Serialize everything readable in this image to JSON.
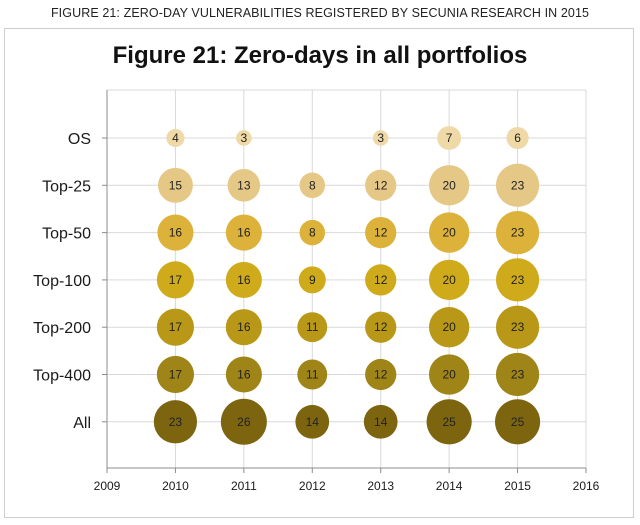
{
  "caption": "FIGURE 21: ZERO-DAY VULNERABILITIES REGISTERED BY SECUNIA RESEARCH IN 2015",
  "chart_data": {
    "type": "scatter",
    "title": "Figure 21: Zero-days in all portfolios",
    "x_ticks": [
      "2009",
      "2010",
      "2011",
      "2012",
      "2013",
      "2014",
      "2015",
      "2016"
    ],
    "xlim": [
      2009,
      2016
    ],
    "categories": [
      "OS",
      "Top-25",
      "Top-50",
      "Top-100",
      "Top-200",
      "Top-400",
      "All"
    ],
    "grid": true,
    "series": [
      {
        "color": "#efd9a6",
        "points": [
          {
            "x": 2010,
            "y": 4
          },
          {
            "x": 2011,
            "y": 3
          },
          {
            "x": 2013,
            "y": 3
          },
          {
            "x": 2014,
            "y": 7
          },
          {
            "x": 2015,
            "y": 6
          }
        ]
      },
      {
        "color": "#e6c886",
        "points": [
          {
            "x": 2010,
            "y": 15
          },
          {
            "x": 2011,
            "y": 13
          },
          {
            "x": 2012,
            "y": 8
          },
          {
            "x": 2013,
            "y": 12
          },
          {
            "x": 2014,
            "y": 20
          },
          {
            "x": 2015,
            "y": 23
          }
        ]
      },
      {
        "color": "#dcb23a",
        "points": [
          {
            "x": 2010,
            "y": 16
          },
          {
            "x": 2011,
            "y": 16
          },
          {
            "x": 2012,
            "y": 8
          },
          {
            "x": 2013,
            "y": 12
          },
          {
            "x": 2014,
            "y": 20
          },
          {
            "x": 2015,
            "y": 23
          }
        ]
      },
      {
        "color": "#cfab1c",
        "points": [
          {
            "x": 2010,
            "y": 17
          },
          {
            "x": 2011,
            "y": 16
          },
          {
            "x": 2012,
            "y": 9
          },
          {
            "x": 2013,
            "y": 12
          },
          {
            "x": 2014,
            "y": 20
          },
          {
            "x": 2015,
            "y": 23
          }
        ]
      },
      {
        "color": "#b99818",
        "points": [
          {
            "x": 2010,
            "y": 17
          },
          {
            "x": 2011,
            "y": 16
          },
          {
            "x": 2012,
            "y": 11
          },
          {
            "x": 2013,
            "y": 12
          },
          {
            "x": 2014,
            "y": 20
          },
          {
            "x": 2015,
            "y": 23
          }
        ]
      },
      {
        "color": "#9f8417",
        "points": [
          {
            "x": 2010,
            "y": 17
          },
          {
            "x": 2011,
            "y": 16
          },
          {
            "x": 2012,
            "y": 11
          },
          {
            "x": 2013,
            "y": 12
          },
          {
            "x": 2014,
            "y": 20
          },
          {
            "x": 2015,
            "y": 23
          }
        ]
      },
      {
        "color": "#7d6510",
        "points": [
          {
            "x": 2010,
            "y": 23
          },
          {
            "x": 2011,
            "y": 26
          },
          {
            "x": 2012,
            "y": 14
          },
          {
            "x": 2013,
            "y": 14
          },
          {
            "x": 2014,
            "y": 25
          },
          {
            "x": 2015,
            "y": 25
          }
        ]
      }
    ]
  }
}
